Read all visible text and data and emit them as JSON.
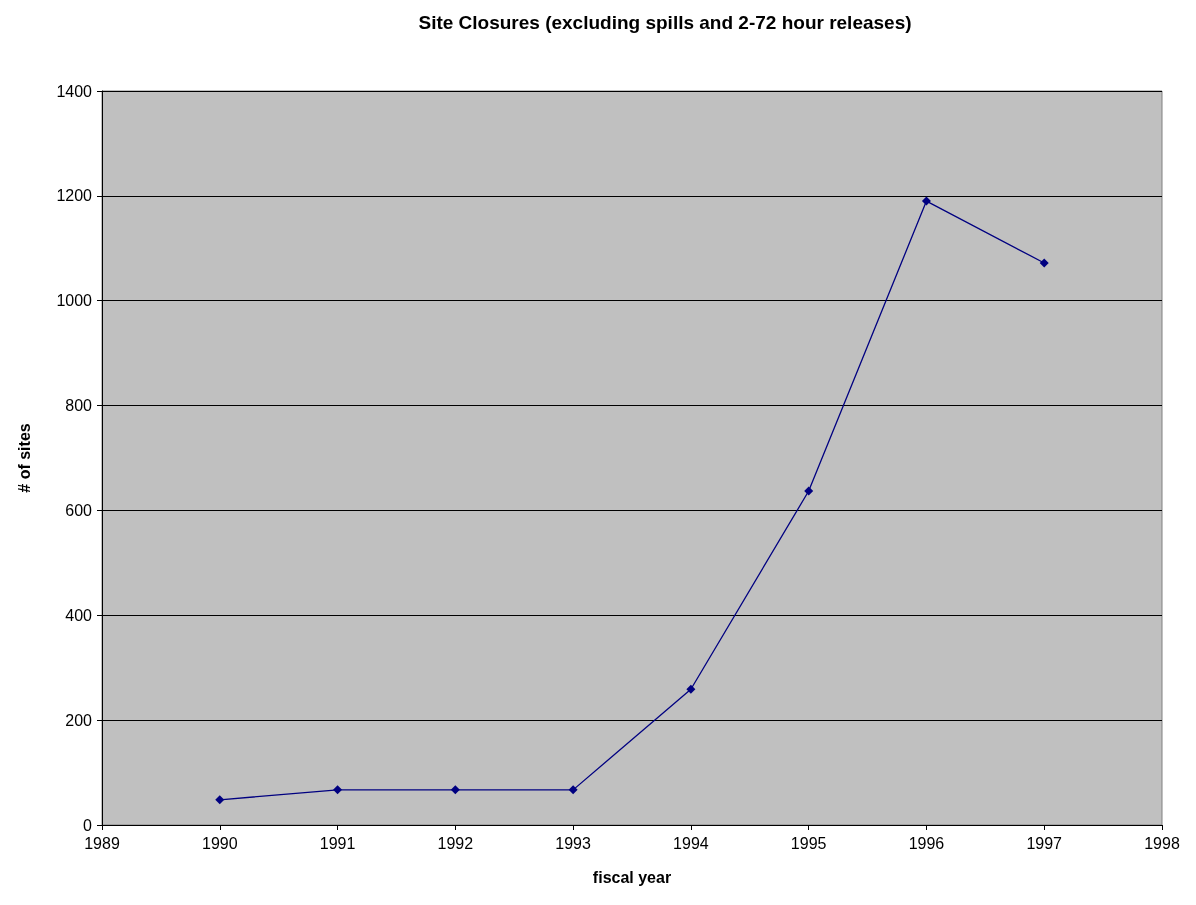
{
  "chart_data": {
    "type": "line",
    "title": "Site Closures (excluding spills and 2-72 hour releases)",
    "xlabel": "fiscal year",
    "ylabel": "# of sites",
    "x": [
      1990,
      1991,
      1992,
      1993,
      1994,
      1995,
      1996,
      1997
    ],
    "series": [
      {
        "color": "#000080",
        "values": [
          48,
          67,
          67,
          67,
          259,
          637,
          1190,
          1072
        ]
      }
    ],
    "xlim": [
      1989,
      1998
    ],
    "xticks": [
      1989,
      1990,
      1991,
      1992,
      1993,
      1994,
      1995,
      1996,
      1997,
      1998
    ],
    "ylim": [
      0,
      1400
    ],
    "yticks": [
      0,
      200,
      400,
      600,
      800,
      1000,
      1200,
      1400
    ],
    "grid": "y",
    "marker": "diamond",
    "line_style": "solid"
  }
}
